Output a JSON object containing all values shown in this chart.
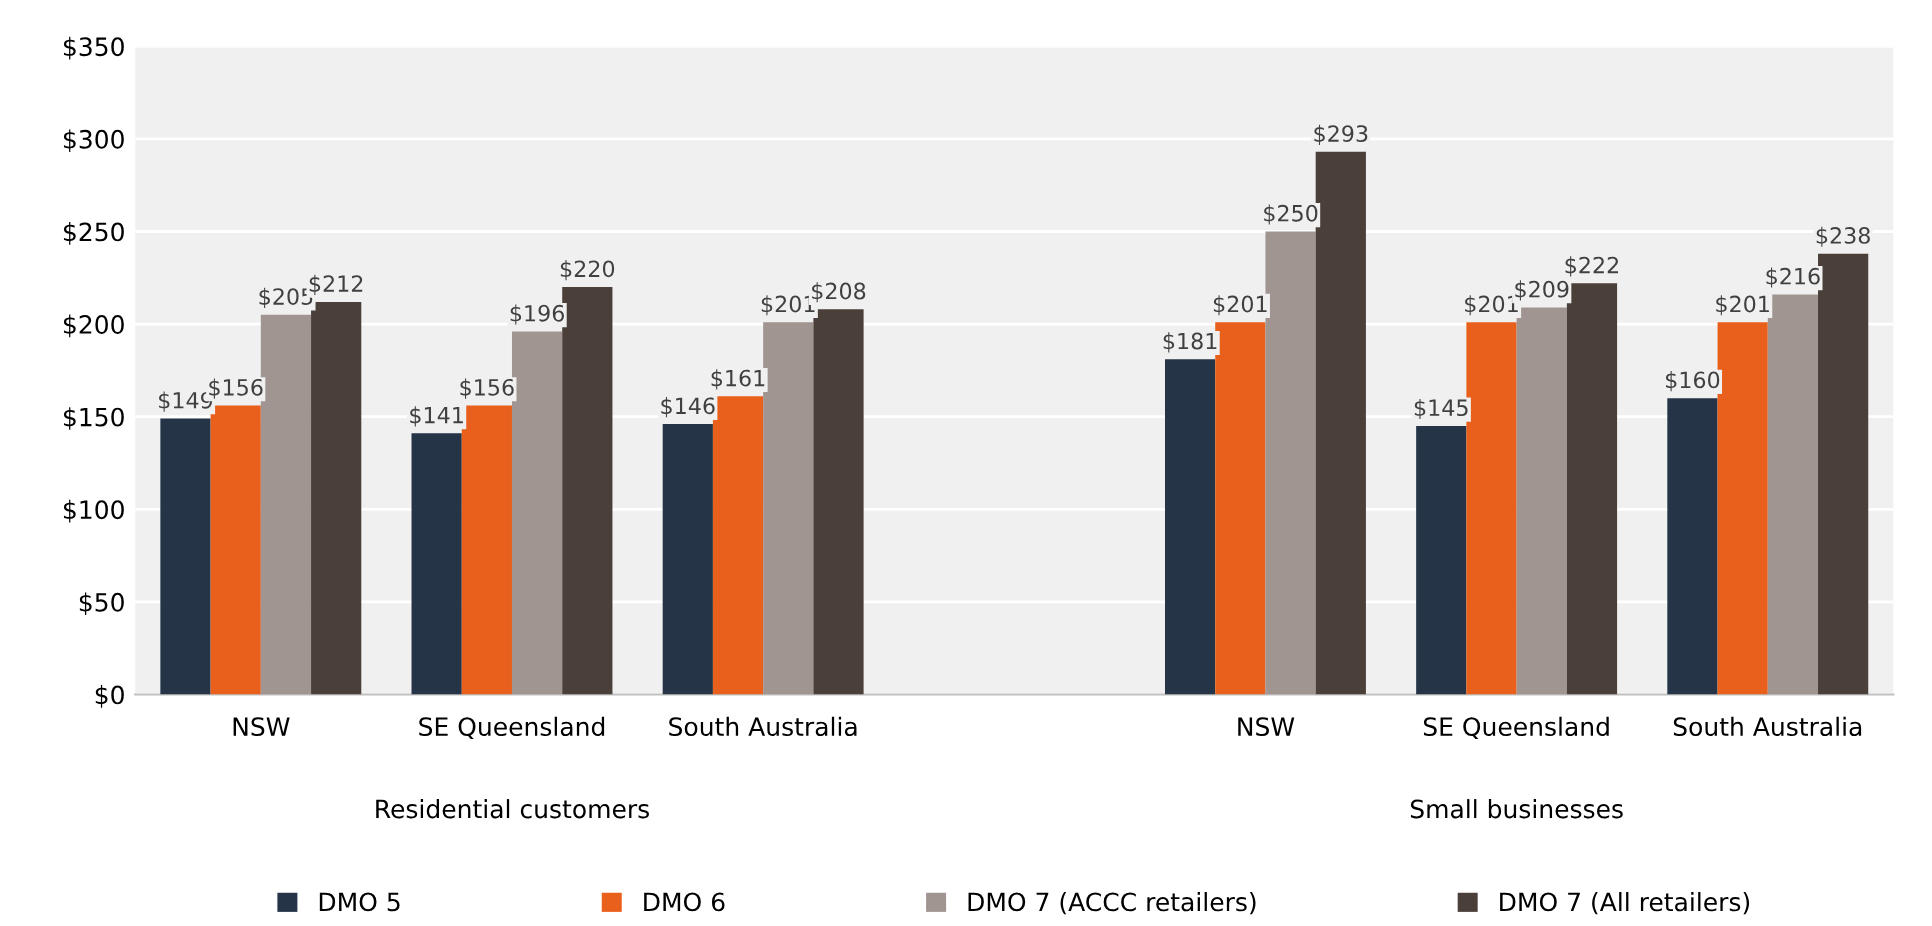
{
  "chart_data": {
    "type": "bar",
    "categories": [
      "NSW",
      "SE Queensland",
      "South Australia",
      null,
      "NSW",
      "SE Queensland",
      "South Australia"
    ],
    "series": [
      {
        "name": "DMO 5",
        "color": "#253447",
        "values": [
          149,
          141,
          146,
          null,
          181,
          145,
          160
        ],
        "value_labels": [
          "$149",
          "$141",
          "$146",
          null,
          "$181",
          "$145",
          "$160"
        ]
      },
      {
        "name": "DMO 6",
        "color": "#e8601c",
        "values": [
          156,
          156,
          161,
          null,
          201,
          201,
          201
        ],
        "value_labels": [
          "$156",
          "$156",
          "$161",
          null,
          "$201",
          "$201",
          "$201"
        ]
      },
      {
        "name": "DMO 7 (ACCC retailers)",
        "color": "#a09590",
        "values": [
          205,
          196,
          201,
          null,
          250,
          209,
          216
        ],
        "value_labels": [
          "$205",
          "$196",
          "$201",
          null,
          "$250",
          "$209",
          "$216"
        ]
      },
      {
        "name": "DMO 7 (All retailers)",
        "color": "#4b3f3a",
        "values": [
          212,
          220,
          208,
          null,
          293,
          222,
          238
        ],
        "value_labels": [
          "$212",
          "$220",
          "$208",
          null,
          "$293",
          "$222",
          "$238"
        ]
      }
    ],
    "ylim": [
      0,
      350
    ],
    "yticks": [
      {
        "value": 0,
        "label": "$0"
      },
      {
        "value": 50,
        "label": "$50"
      },
      {
        "value": 100,
        "label": "$100"
      },
      {
        "value": 150,
        "label": "$150"
      },
      {
        "value": 200,
        "label": "$200"
      },
      {
        "value": 250,
        "label": "$250"
      },
      {
        "value": 300,
        "label": "$300"
      },
      {
        "value": 350,
        "label": "$350"
      }
    ],
    "annotations": [
      "Residential customers",
      "Small businesses"
    ],
    "grid": "y",
    "legend": "bottom"
  }
}
